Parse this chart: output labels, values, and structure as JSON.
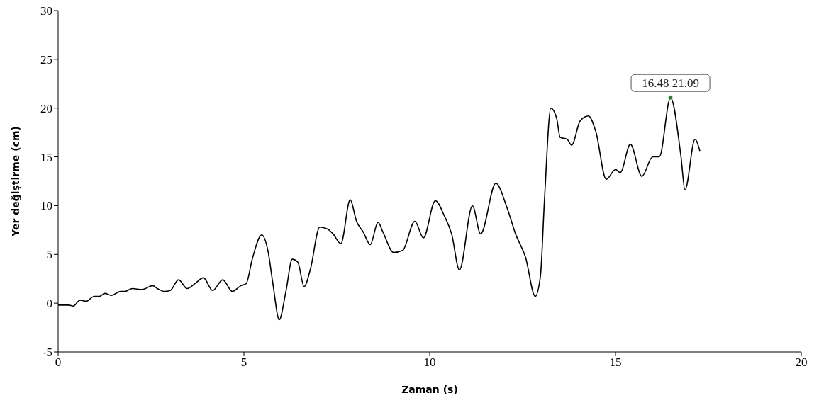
{
  "chart_data": {
    "type": "line",
    "xlabel": "Zaman (s)",
    "ylabel": "Yer değiştirme (cm)",
    "xlim": [
      0,
      20
    ],
    "xticks": [
      0,
      5,
      10,
      15,
      20
    ],
    "ylim": [
      -5,
      30
    ],
    "yticks": [
      -5,
      0,
      5,
      10,
      15,
      20,
      25,
      30
    ],
    "grid": false,
    "legend": false,
    "marker": "none",
    "line_style": "solid",
    "annotations": [
      {
        "text": "16.48 21.09",
        "x": 16.48,
        "y": 21.09
      }
    ],
    "series": [
      {
        "color": "#000000",
        "x": [
          0,
          0.29,
          0.4,
          0.59,
          0.76,
          0.97,
          1.11,
          1.26,
          1.43,
          1.68,
          1.79,
          2.0,
          2.25,
          2.35,
          2.54,
          2.67,
          2.86,
          3.02,
          3.24,
          3.47,
          3.68,
          3.91,
          4.16,
          4.43,
          4.69,
          4.92,
          5.06,
          5.23,
          5.48,
          5.65,
          5.78,
          5.95,
          6.13,
          6.3,
          6.45,
          6.62,
          6.79,
          7.04,
          7.25,
          7.4,
          7.61,
          7.86,
          8.03,
          8.21,
          8.4,
          8.61,
          8.74,
          9.03,
          9.27,
          9.6,
          9.83,
          10.15,
          10.4,
          10.59,
          10.8,
          11.15,
          11.37,
          11.78,
          12.08,
          12.31,
          12.58,
          12.84,
          12.98,
          13.09,
          13.26,
          13.42,
          13.51,
          13.7,
          13.82,
          14.05,
          14.27,
          14.47,
          14.75,
          15.0,
          15.13,
          15.4,
          15.71,
          16.0,
          16.18,
          16.48,
          16.76,
          16.87,
          17.14,
          17.27
        ],
        "values": [
          -0.2,
          -0.2,
          -0.3,
          0.3,
          0.2,
          0.7,
          0.7,
          1.0,
          0.8,
          1.2,
          1.2,
          1.5,
          1.4,
          1.5,
          1.8,
          1.5,
          1.2,
          1.3,
          2.4,
          1.5,
          2.0,
          2.6,
          1.3,
          2.4,
          1.2,
          1.8,
          2.0,
          4.6,
          7.0,
          5.3,
          2.0,
          -1.7,
          1.2,
          4.5,
          4.2,
          1.7,
          3.5,
          7.8,
          7.6,
          7.1,
          6.1,
          10.6,
          8.4,
          7.3,
          6.0,
          8.3,
          7.3,
          5.2,
          5.4,
          8.4,
          6.7,
          10.5,
          8.9,
          7.1,
          3.4,
          10.0,
          7.1,
          12.3,
          9.8,
          7.1,
          4.7,
          0.7,
          2.8,
          10.7,
          20.0,
          18.9,
          17.0,
          16.8,
          16.2,
          18.7,
          19.2,
          17.6,
          12.7,
          13.7,
          13.4,
          16.3,
          13.0,
          15.0,
          15.0,
          21.09,
          15.1,
          11.6,
          16.8,
          15.6
        ]
      }
    ]
  }
}
